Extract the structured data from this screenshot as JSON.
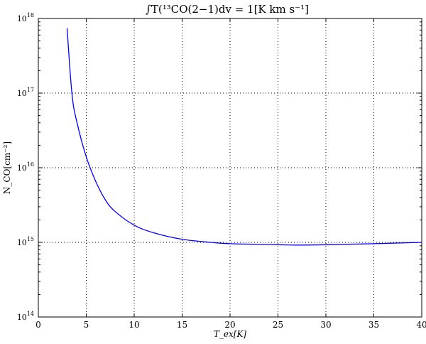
{
  "chart_data": {
    "type": "line",
    "title": "∫T(¹³CO(2−1)dv = 1[K km s⁻¹]",
    "xlabel": "T_ex[K]",
    "ylabel": "N_CO[cm⁻²]",
    "xlim": [
      0,
      40
    ],
    "ylim": [
      100000000000000.0,
      1e+18
    ],
    "yscale": "log",
    "grid": true,
    "x_ticks": [
      "0",
      "5",
      "10",
      "15",
      "20",
      "25",
      "30",
      "35",
      "40"
    ],
    "y_ticks": [
      "10^14",
      "10^15",
      "10^16",
      "10^17",
      "10^18"
    ],
    "series": [
      {
        "color": "#0000ff",
        "x": [
          3,
          3.5,
          4,
          5,
          6,
          7,
          8,
          10,
          12,
          15,
          18,
          20,
          25,
          27,
          30,
          35,
          40
        ],
        "y": [
          7.4e+17,
          1e+17,
          4.2e+16,
          1.4e+16,
          6500000000000000.0,
          3700000000000000.0,
          2600000000000000.0,
          1700000000000000.0,
          1350000000000000.0,
          1100000000000000.0,
          1000000000000000.0,
          960000000000000.0,
          930000000000000.0,
          920000000000000.0,
          930000000000000.0,
          960000000000000.0,
          1000000000000000.0
        ]
      }
    ]
  }
}
